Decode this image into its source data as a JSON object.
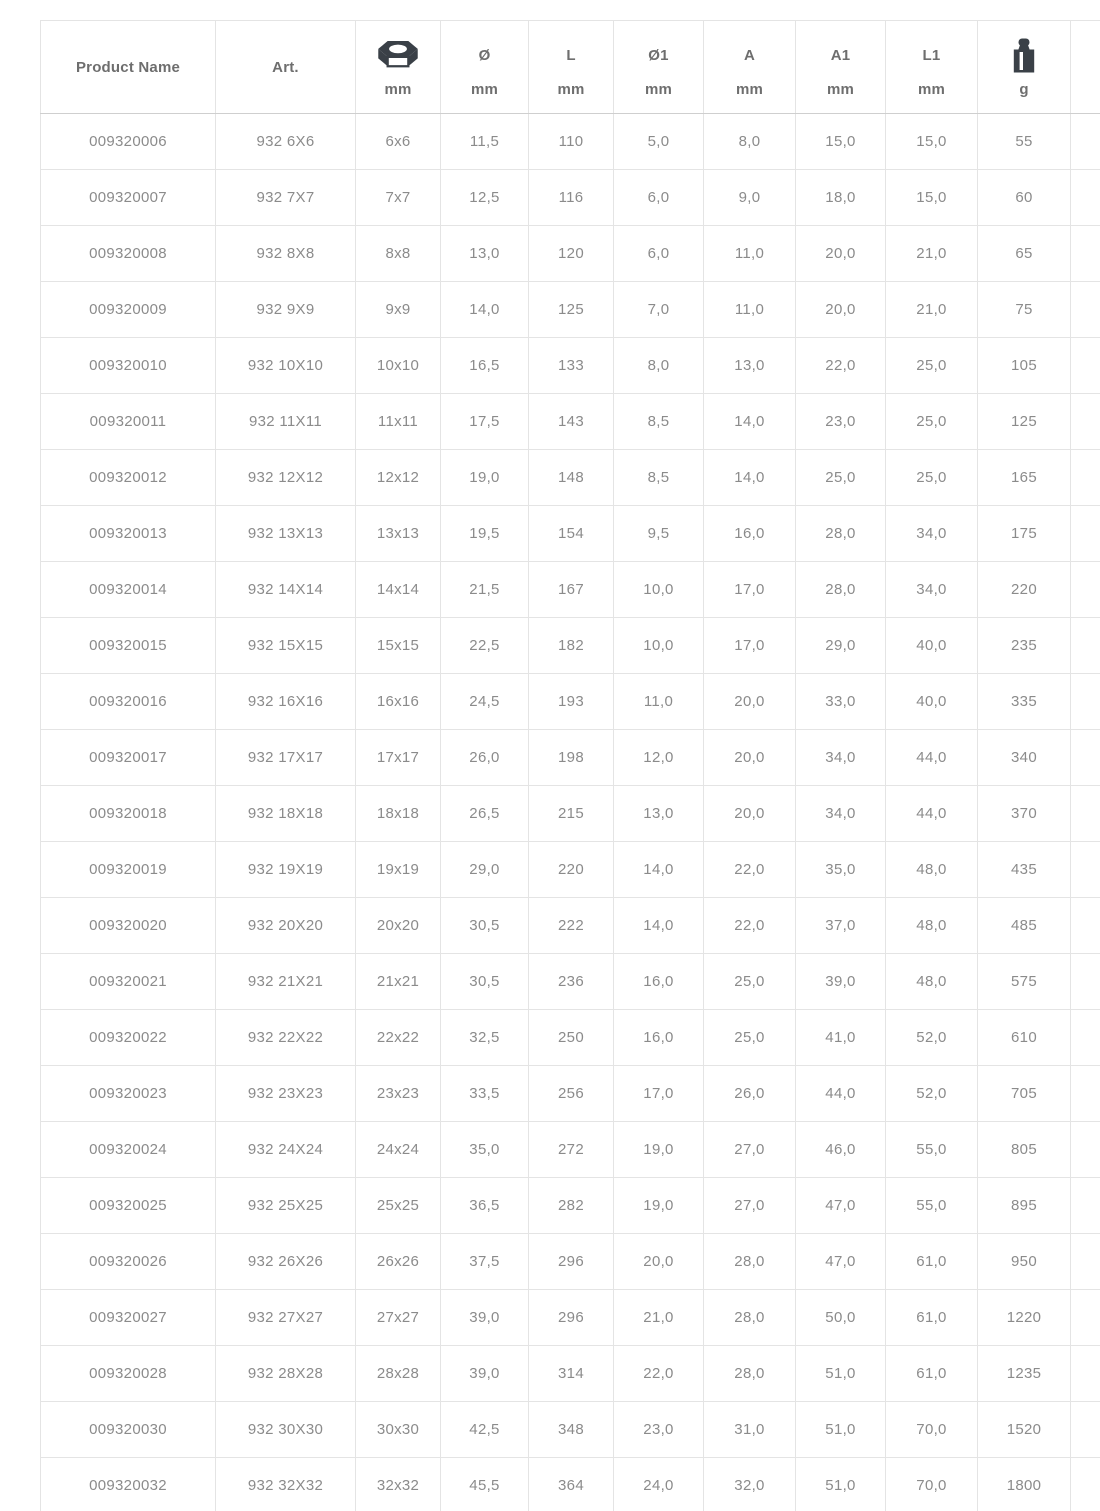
{
  "table": {
    "columns": [
      {
        "label": "Product Name"
      },
      {
        "label": "Art."
      },
      {
        "icon": "hex-nut-icon",
        "sub": "mm"
      },
      {
        "label": "Ø",
        "sub": "mm"
      },
      {
        "label": "L",
        "sub": "mm"
      },
      {
        "label": "Ø1",
        "sub": "mm"
      },
      {
        "label": "A",
        "sub": "mm"
      },
      {
        "label": "A1",
        "sub": "mm"
      },
      {
        "label": "L1",
        "sub": "mm"
      },
      {
        "icon": "weight-icon",
        "sub": "g"
      }
    ],
    "rows": [
      [
        "009320006",
        "932 6X6",
        "6x6",
        "11,5",
        "110",
        "5,0",
        "8,0",
        "15,0",
        "15,0",
        "55"
      ],
      [
        "009320007",
        "932 7X7",
        "7x7",
        "12,5",
        "116",
        "6,0",
        "9,0",
        "18,0",
        "15,0",
        "60"
      ],
      [
        "009320008",
        "932 8X8",
        "8x8",
        "13,0",
        "120",
        "6,0",
        "11,0",
        "20,0",
        "21,0",
        "65"
      ],
      [
        "009320009",
        "932 9X9",
        "9x9",
        "14,0",
        "125",
        "7,0",
        "11,0",
        "20,0",
        "21,0",
        "75"
      ],
      [
        "009320010",
        "932 10X10",
        "10x10",
        "16,5",
        "133",
        "8,0",
        "13,0",
        "22,0",
        "25,0",
        "105"
      ],
      [
        "009320011",
        "932 11X11",
        "11x11",
        "17,5",
        "143",
        "8,5",
        "14,0",
        "23,0",
        "25,0",
        "125"
      ],
      [
        "009320012",
        "932 12X12",
        "12x12",
        "19,0",
        "148",
        "8,5",
        "14,0",
        "25,0",
        "25,0",
        "165"
      ],
      [
        "009320013",
        "932 13X13",
        "13x13",
        "19,5",
        "154",
        "9,5",
        "16,0",
        "28,0",
        "34,0",
        "175"
      ],
      [
        "009320014",
        "932 14X14",
        "14x14",
        "21,5",
        "167",
        "10,0",
        "17,0",
        "28,0",
        "34,0",
        "220"
      ],
      [
        "009320015",
        "932 15X15",
        "15x15",
        "22,5",
        "182",
        "10,0",
        "17,0",
        "29,0",
        "40,0",
        "235"
      ],
      [
        "009320016",
        "932 16X16",
        "16x16",
        "24,5",
        "193",
        "11,0",
        "20,0",
        "33,0",
        "40,0",
        "335"
      ],
      [
        "009320017",
        "932 17X17",
        "17x17",
        "26,0",
        "198",
        "12,0",
        "20,0",
        "34,0",
        "44,0",
        "340"
      ],
      [
        "009320018",
        "932 18X18",
        "18x18",
        "26,5",
        "215",
        "13,0",
        "20,0",
        "34,0",
        "44,0",
        "370"
      ],
      [
        "009320019",
        "932 19X19",
        "19x19",
        "29,0",
        "220",
        "14,0",
        "22,0",
        "35,0",
        "48,0",
        "435"
      ],
      [
        "009320020",
        "932 20X20",
        "20x20",
        "30,5",
        "222",
        "14,0",
        "22,0",
        "37,0",
        "48,0",
        "485"
      ],
      [
        "009320021",
        "932 21X21",
        "21x21",
        "30,5",
        "236",
        "16,0",
        "25,0",
        "39,0",
        "48,0",
        "575"
      ],
      [
        "009320022",
        "932 22X22",
        "22x22",
        "32,5",
        "250",
        "16,0",
        "25,0",
        "41,0",
        "52,0",
        "610"
      ],
      [
        "009320023",
        "932 23X23",
        "23x23",
        "33,5",
        "256",
        "17,0",
        "26,0",
        "44,0",
        "52,0",
        "705"
      ],
      [
        "009320024",
        "932 24X24",
        "24x24",
        "35,0",
        "272",
        "19,0",
        "27,0",
        "46,0",
        "55,0",
        "805"
      ],
      [
        "009320025",
        "932 25X25",
        "25x25",
        "36,5",
        "282",
        "19,0",
        "27,0",
        "47,0",
        "55,0",
        "895"
      ],
      [
        "009320026",
        "932 26X26",
        "26x26",
        "37,5",
        "296",
        "20,0",
        "28,0",
        "47,0",
        "61,0",
        "950"
      ],
      [
        "009320027",
        "932 27X27",
        "27x27",
        "39,0",
        "296",
        "21,0",
        "28,0",
        "50,0",
        "61,0",
        "1220"
      ],
      [
        "009320028",
        "932 28X28",
        "28x28",
        "39,0",
        "314",
        "22,0",
        "28,0",
        "51,0",
        "61,0",
        "1235"
      ],
      [
        "009320030",
        "932 30X30",
        "30x30",
        "42,5",
        "348",
        "23,0",
        "31,0",
        "51,0",
        "70,0",
        "1520"
      ],
      [
        "009320032",
        "932 32X32",
        "32x32",
        "45,5",
        "364",
        "24,0",
        "32,0",
        "51,0",
        "70,0",
        "1800"
      ]
    ]
  },
  "colors": {
    "icon": "#3a4047",
    "header_text": "#6e6e6e",
    "cell_text": "#8b8b8b",
    "grid": "#e4e4e4",
    "header_border": "#cfcfcf"
  }
}
